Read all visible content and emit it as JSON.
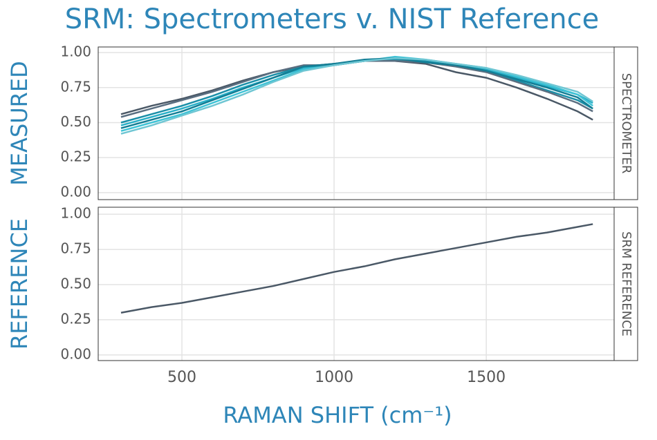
{
  "chart_data": [
    {
      "type": "line",
      "title": "SRM: Spectrometers v. NIST Reference",
      "ylabel": "MEASURED",
      "strip_label": "SPECTROMETER",
      "x": [
        300,
        400,
        500,
        600,
        700,
        800,
        900,
        1000,
        1100,
        1200,
        1300,
        1400,
        1500,
        1600,
        1700,
        1800,
        1850
      ],
      "xlim": [
        225,
        1920
      ],
      "xticks": [
        500,
        1000,
        1500
      ],
      "ylim": [
        -0.05,
        1.04
      ],
      "yticks": [
        {
          "value": 0,
          "label": "0.00"
        },
        0.25,
        {
          "value": 0.5,
          "label": "0.50"
        },
        0.75,
        {
          "value": 1,
          "label": "1.00"
        }
      ],
      "grid": true,
      "series": [
        {
          "color": "#4a5866",
          "values": [
            0.56,
            0.62,
            0.67,
            0.73,
            0.8,
            0.86,
            0.9,
            0.92,
            0.94,
            0.94,
            0.92,
            0.86,
            0.82,
            0.75,
            0.67,
            0.58,
            0.52
          ]
        },
        {
          "color": "#2ab0c8",
          "values": [
            0.48,
            0.54,
            0.6,
            0.67,
            0.75,
            0.82,
            0.89,
            0.92,
            0.94,
            0.96,
            0.94,
            0.91,
            0.88,
            0.82,
            0.76,
            0.7,
            0.64
          ]
        },
        {
          "color": "#1a8fa8",
          "values": [
            0.5,
            0.56,
            0.62,
            0.69,
            0.77,
            0.84,
            0.9,
            0.91,
            0.94,
            0.95,
            0.94,
            0.91,
            0.87,
            0.8,
            0.73,
            0.66,
            0.6
          ]
        },
        {
          "color": "#5a6e80",
          "values": [
            0.54,
            0.6,
            0.66,
            0.72,
            0.79,
            0.86,
            0.91,
            0.91,
            0.94,
            0.94,
            0.93,
            0.9,
            0.86,
            0.79,
            0.72,
            0.64,
            0.58
          ]
        },
        {
          "color": "#3fc3d6",
          "values": [
            0.44,
            0.5,
            0.56,
            0.64,
            0.72,
            0.8,
            0.88,
            0.91,
            0.94,
            0.97,
            0.95,
            0.92,
            0.89,
            0.83,
            0.77,
            0.7,
            0.62
          ]
        },
        {
          "color": "#137e95",
          "values": [
            0.46,
            0.52,
            0.58,
            0.66,
            0.74,
            0.82,
            0.9,
            0.92,
            0.95,
            0.96,
            0.93,
            0.91,
            0.87,
            0.81,
            0.75,
            0.68,
            0.6
          ]
        },
        {
          "color": "#6fc6d3",
          "values": [
            0.42,
            0.48,
            0.55,
            0.62,
            0.7,
            0.79,
            0.87,
            0.91,
            0.94,
            0.96,
            0.95,
            0.92,
            0.89,
            0.84,
            0.78,
            0.72,
            0.65
          ]
        }
      ]
    },
    {
      "type": "line",
      "ylabel": "REFERENCE",
      "strip_label": "SRM REFERENCE",
      "xlabel": "RAMAN SHIFT (cm⁻¹)",
      "x": [
        300,
        400,
        500,
        600,
        700,
        800,
        900,
        1000,
        1100,
        1200,
        1300,
        1400,
        1500,
        1600,
        1700,
        1800,
        1850
      ],
      "xlim": [
        225,
        1920
      ],
      "xticks": [
        500,
        1000,
        1500
      ],
      "ylim": [
        -0.04,
        1.05
      ],
      "yticks": [
        {
          "value": 0,
          "label": "0.00"
        },
        0.25,
        {
          "value": 0.5,
          "label": "0.50"
        },
        0.75,
        {
          "value": 1,
          "label": "1.00"
        }
      ],
      "grid": true,
      "series": [
        {
          "color": "#4a5866",
          "values": [
            0.3,
            0.34,
            0.37,
            0.41,
            0.45,
            0.49,
            0.54,
            0.59,
            0.63,
            0.68,
            0.72,
            0.76,
            0.8,
            0.84,
            0.87,
            0.91,
            0.93
          ]
        }
      ]
    }
  ]
}
